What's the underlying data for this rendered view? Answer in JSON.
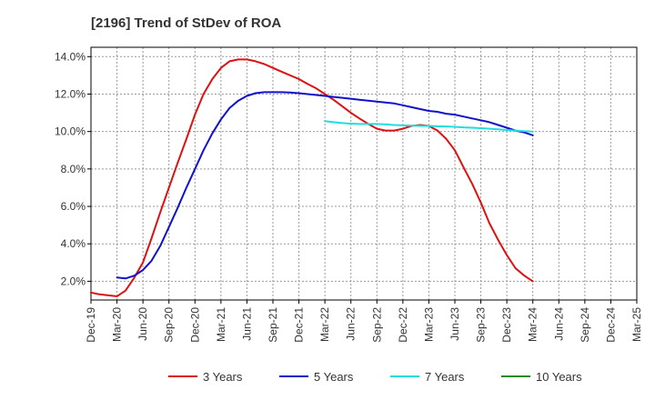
{
  "chart_data": {
    "type": "line",
    "title": "[2196]  Trend of StDev of ROA",
    "xlabel": "",
    "ylabel": "",
    "x_ticks": [
      "Dec-19",
      "Mar-20",
      "Jun-20",
      "Sep-20",
      "Dec-20",
      "Mar-21",
      "Jun-21",
      "Sep-21",
      "Dec-21",
      "Mar-22",
      "Jun-22",
      "Sep-22",
      "Dec-22",
      "Mar-23",
      "Jun-23",
      "Sep-23",
      "Dec-23",
      "Mar-24",
      "Jun-24",
      "Sep-24",
      "Dec-24",
      "Mar-25"
    ],
    "y_ticks": [
      "2.0%",
      "4.0%",
      "6.0%",
      "8.0%",
      "10.0%",
      "12.0%",
      "14.0%"
    ],
    "y_tick_values": [
      2,
      4,
      6,
      8,
      10,
      12,
      14
    ],
    "ylim": [
      1.0,
      14.5
    ],
    "grid": true,
    "legend_position": "bottom",
    "series": [
      {
        "name": "3 Years",
        "color": "#dd1111",
        "points": [
          [
            0,
            1.4
          ],
          [
            0.33,
            1.3
          ],
          [
            0.67,
            1.25
          ],
          [
            1,
            1.2
          ],
          [
            1.33,
            1.5
          ],
          [
            1.67,
            2.2
          ],
          [
            2,
            3.0
          ],
          [
            2.33,
            4.3
          ],
          [
            2.67,
            5.7
          ],
          [
            3,
            7.0
          ],
          [
            3.33,
            8.3
          ],
          [
            3.67,
            9.6
          ],
          [
            4,
            10.9
          ],
          [
            4.33,
            12.0
          ],
          [
            4.67,
            12.8
          ],
          [
            5,
            13.4
          ],
          [
            5.33,
            13.75
          ],
          [
            5.67,
            13.85
          ],
          [
            6,
            13.85
          ],
          [
            6.33,
            13.75
          ],
          [
            6.67,
            13.6
          ],
          [
            7,
            13.4
          ],
          [
            7.33,
            13.2
          ],
          [
            7.67,
            13.0
          ],
          [
            8,
            12.8
          ],
          [
            8.33,
            12.55
          ],
          [
            8.67,
            12.3
          ],
          [
            9,
            12.0
          ],
          [
            9.33,
            11.7
          ],
          [
            9.67,
            11.35
          ],
          [
            10,
            11.0
          ],
          [
            10.33,
            10.7
          ],
          [
            10.67,
            10.4
          ],
          [
            11,
            10.15
          ],
          [
            11.33,
            10.05
          ],
          [
            11.67,
            10.05
          ],
          [
            12,
            10.15
          ],
          [
            12.33,
            10.3
          ],
          [
            12.67,
            10.35
          ],
          [
            13,
            10.3
          ],
          [
            13.33,
            10.05
          ],
          [
            13.67,
            9.6
          ],
          [
            14,
            9.0
          ],
          [
            14.33,
            8.1
          ],
          [
            14.67,
            7.2
          ],
          [
            15,
            6.2
          ],
          [
            15.33,
            5.1
          ],
          [
            15.67,
            4.2
          ],
          [
            16,
            3.4
          ],
          [
            16.33,
            2.7
          ],
          [
            16.67,
            2.3
          ],
          [
            17,
            2.0
          ]
        ]
      },
      {
        "name": "5 Years",
        "color": "#1111cc",
        "points": [
          [
            1,
            2.2
          ],
          [
            1.33,
            2.15
          ],
          [
            1.67,
            2.3
          ],
          [
            2,
            2.6
          ],
          [
            2.33,
            3.1
          ],
          [
            2.67,
            3.9
          ],
          [
            3,
            4.9
          ],
          [
            3.33,
            5.9
          ],
          [
            3.67,
            7.0
          ],
          [
            4,
            8.0
          ],
          [
            4.33,
            9.0
          ],
          [
            4.67,
            9.9
          ],
          [
            5,
            10.65
          ],
          [
            5.33,
            11.25
          ],
          [
            5.67,
            11.65
          ],
          [
            6,
            11.9
          ],
          [
            6.33,
            12.05
          ],
          [
            6.67,
            12.1
          ],
          [
            7,
            12.1
          ],
          [
            7.33,
            12.1
          ],
          [
            7.67,
            12.08
          ],
          [
            8,
            12.05
          ],
          [
            8.33,
            12.0
          ],
          [
            8.67,
            11.95
          ],
          [
            9,
            11.9
          ],
          [
            9.33,
            11.85
          ],
          [
            9.67,
            11.8
          ],
          [
            10,
            11.75
          ],
          [
            10.33,
            11.7
          ],
          [
            10.67,
            11.65
          ],
          [
            11,
            11.6
          ],
          [
            11.33,
            11.55
          ],
          [
            11.67,
            11.5
          ],
          [
            12,
            11.4
          ],
          [
            12.33,
            11.3
          ],
          [
            12.67,
            11.2
          ],
          [
            13,
            11.1
          ],
          [
            13.33,
            11.05
          ],
          [
            13.67,
            10.95
          ],
          [
            14,
            10.9
          ],
          [
            14.33,
            10.8
          ],
          [
            14.67,
            10.7
          ],
          [
            15,
            10.6
          ],
          [
            15.33,
            10.5
          ],
          [
            15.67,
            10.35
          ],
          [
            16,
            10.2
          ],
          [
            16.33,
            10.05
          ],
          [
            16.67,
            9.95
          ],
          [
            17,
            9.8
          ]
        ]
      },
      {
        "name": "7 Years",
        "color": "#22dddd",
        "points": [
          [
            9,
            10.55
          ],
          [
            9.33,
            10.5
          ],
          [
            9.67,
            10.45
          ],
          [
            10,
            10.42
          ],
          [
            10.33,
            10.4
          ],
          [
            10.67,
            10.4
          ],
          [
            11,
            10.4
          ],
          [
            11.33,
            10.38
          ],
          [
            11.67,
            10.35
          ],
          [
            12,
            10.33
          ],
          [
            12.33,
            10.32
          ],
          [
            12.67,
            10.3
          ],
          [
            13,
            10.3
          ],
          [
            13.33,
            10.28
          ],
          [
            13.67,
            10.27
          ],
          [
            14,
            10.25
          ],
          [
            14.33,
            10.22
          ],
          [
            14.67,
            10.2
          ],
          [
            15,
            10.18
          ],
          [
            15.33,
            10.15
          ],
          [
            15.67,
            10.12
          ],
          [
            16,
            10.08
          ],
          [
            16.33,
            10.05
          ],
          [
            16.67,
            10.02
          ],
          [
            17,
            10.0
          ]
        ]
      },
      {
        "name": "10 Years",
        "color": "#228b22",
        "points": []
      }
    ]
  }
}
